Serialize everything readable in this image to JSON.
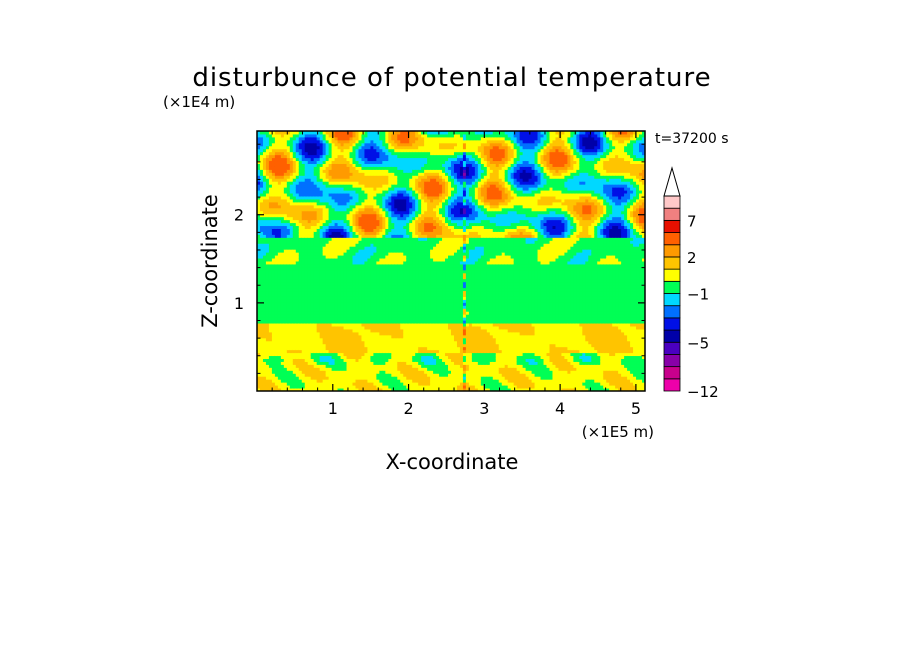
{
  "chart_data": {
    "type": "heatmap",
    "title": "disturbunce of potential temperature",
    "time_label": "t=37200 s",
    "xlabel": "X-coordinate",
    "ylabel": "Z-coordinate",
    "x_unit": "(×1E5 m)",
    "y_unit": "(×1E4 m)",
    "x_ticks": [
      1,
      2,
      3,
      4,
      5
    ],
    "y_ticks": [
      1,
      2
    ],
    "xlim": [
      0,
      5.12
    ],
    "ylim": [
      0,
      2.95
    ],
    "colorbar": {
      "labels": [
        "7",
        "2",
        "−1",
        "−5",
        "−12"
      ],
      "label_values": [
        7,
        2,
        -1,
        -5,
        -12
      ],
      "levels": [
        -12,
        -10,
        -8,
        -6,
        -5,
        -4,
        -3,
        -2,
        -1,
        0,
        1,
        2,
        3,
        5,
        7,
        9,
        11
      ],
      "colors": [
        "#ee00aa",
        "#c8008c",
        "#8800a8",
        "#4a00c0",
        "#0000a8",
        "#0010e6",
        "#0070ff",
        "#00d8ff",
        "#00ff55",
        "#ffff00",
        "#ffc400",
        "#ff9a00",
        "#ff6000",
        "#e81000",
        "#f08080",
        "#ffc8c8"
      ],
      "extend_top": true
    }
  }
}
